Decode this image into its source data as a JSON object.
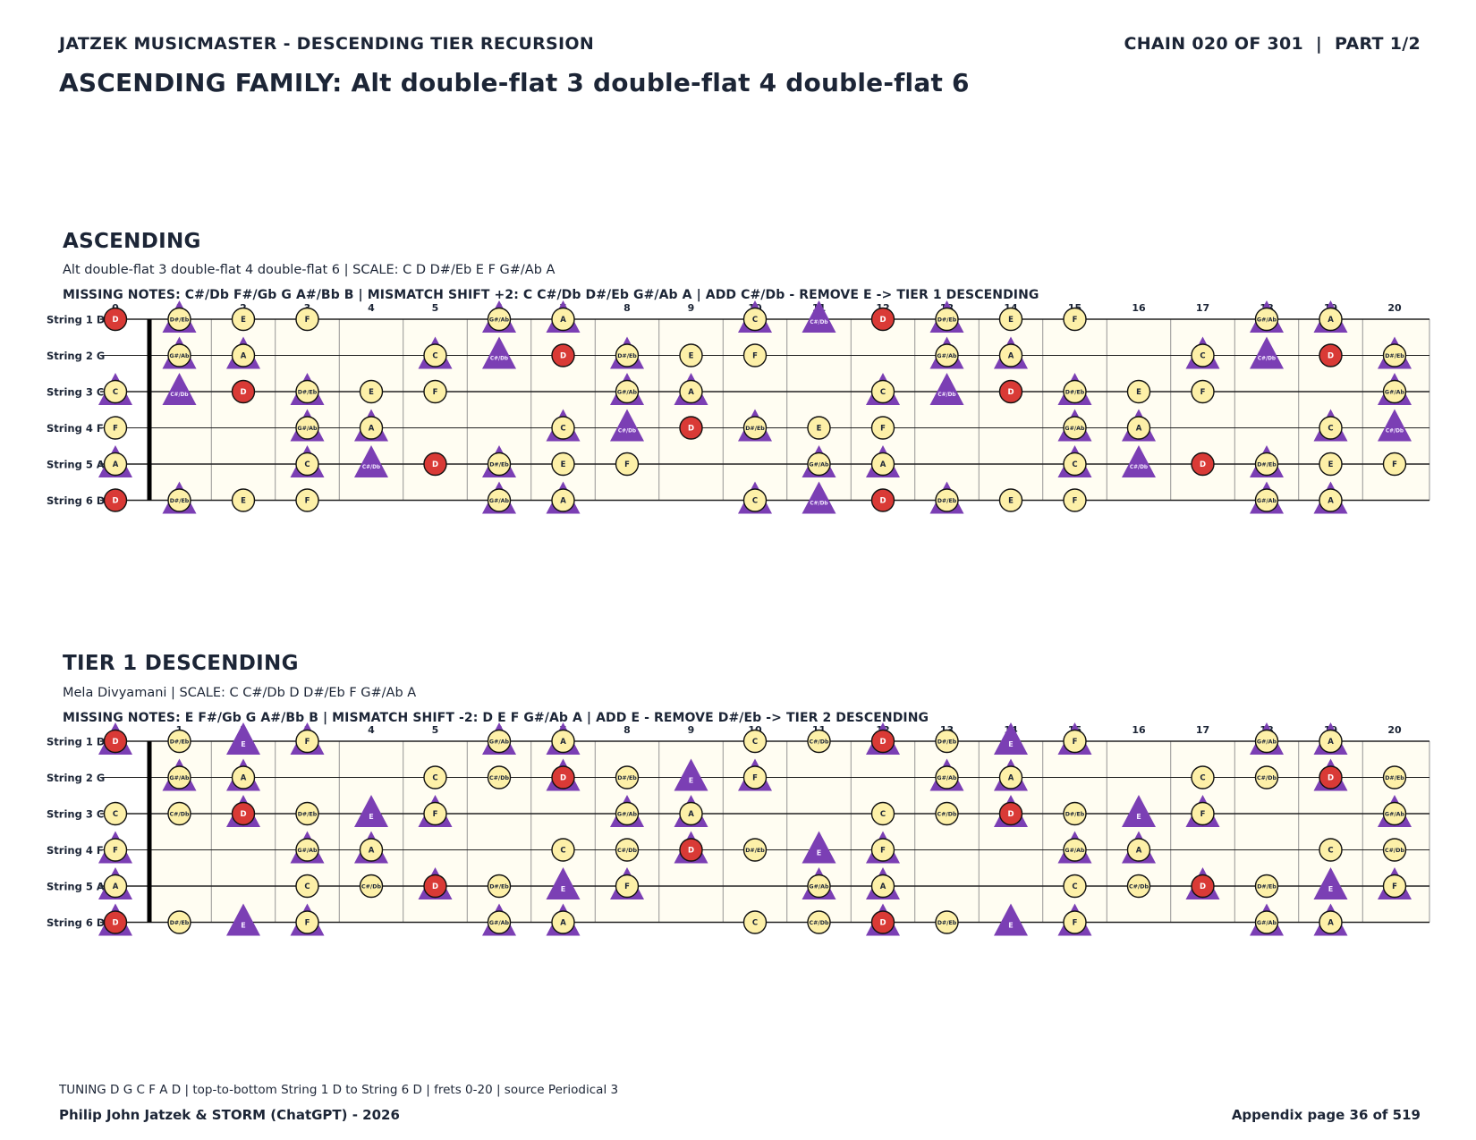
{
  "header": {
    "left": "JATZEK MUSICMASTER - DESCENDING TIER RECURSION",
    "right": "CHAIN 020 OF 301  |  PART 1/2",
    "title": "ASCENDING FAMILY: Alt double-flat 3 double-flat 4 double-flat 6"
  },
  "sections": [
    {
      "title": "ASCENDING",
      "subtitle": "Alt double-flat 3 double-flat 4 double-flat 6  |  SCALE: C D D#/Eb E F G#/Ab A",
      "info": "MISSING NOTES: C#/Db F#/Gb G A#/Bb B  |  MISMATCH SHIFT +2: C C#/Db D#/Eb G#/Ab A  |  ADD C#/Db - REMOVE E -> TIER 1 DESCENDING",
      "scale": [
        "C",
        "D",
        "D#/Eb",
        "E",
        "F",
        "G#/Ab",
        "A"
      ],
      "shifted": [
        "C",
        "C#/Db",
        "D#/Eb",
        "G#/Ab",
        "A"
      ],
      "root": "D"
    },
    {
      "title": "TIER 1 DESCENDING",
      "subtitle": "Mela Divyamani  |  SCALE: C C#/Db D D#/Eb F G#/Ab A",
      "info": "MISSING NOTES: E F#/Gb G A#/Bb B  |  MISMATCH SHIFT -2: D E F G#/Ab A  |  ADD E - REMOVE D#/Eb -> TIER 2 DESCENDING",
      "scale": [
        "C",
        "C#/Db",
        "D",
        "D#/Eb",
        "F",
        "G#/Ab",
        "A"
      ],
      "shifted": [
        "D",
        "E",
        "F",
        "G#/Ab",
        "A"
      ],
      "root": "D"
    }
  ],
  "fretboard": {
    "strings": [
      {
        "label": "String 1 D",
        "open": "D"
      },
      {
        "label": "String 2 G",
        "open": "G"
      },
      {
        "label": "String 3 C",
        "open": "C"
      },
      {
        "label": "String 4 F",
        "open": "F"
      },
      {
        "label": "String 5 A",
        "open": "A"
      },
      {
        "label": "String 6 D",
        "open": "D"
      }
    ],
    "frets": [
      "0",
      "1",
      "2",
      "3",
      "4",
      "5",
      "6",
      "7",
      "8",
      "9",
      "10",
      "11",
      "12",
      "13",
      "14",
      "15",
      "16",
      "17",
      "18",
      "19",
      "20"
    ],
    "chromatic": [
      "C",
      "C#/Db",
      "D",
      "D#/Eb",
      "E",
      "F",
      "F#/Gb",
      "G",
      "G#/Ab",
      "A",
      "A#/Bb",
      "B"
    ]
  },
  "footer": {
    "tuning": "TUNING D G C F A D | top-to-bottom String 1 D to String 6 D | frets 0-20 | source Periodical 3",
    "authors": "Philip John Jatzek & STORM (ChatGPT) - 2026",
    "page": "Appendix page 36 of 519"
  },
  "colors": {
    "text": "#1c2536",
    "board": "#fffdf2",
    "note_fill": "#fdf0a8",
    "root_fill": "#d93a36",
    "shift_triangle": "#7b3fb4",
    "nut": "#000000"
  }
}
